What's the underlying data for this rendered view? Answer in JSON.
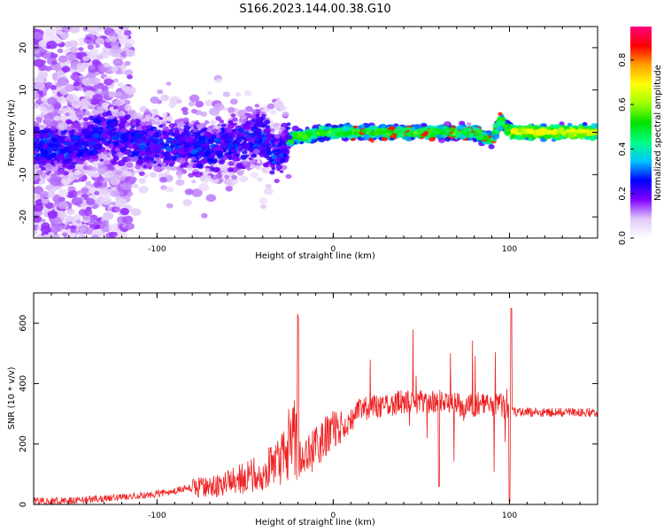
{
  "title": "S166.2023.144.00.38.G10",
  "chart_data": [
    {
      "type": "heatmap",
      "xlabel": "Height of straight line (km)",
      "ylabel": "Frequency (Hz)",
      "xlim": [
        -170,
        150
      ],
      "ylim": [
        -25,
        25
      ],
      "xticks": [
        -100,
        0,
        100
      ],
      "yticks": [
        -20,
        -10,
        0,
        10,
        20
      ],
      "colorbar": {
        "label": "Normalized spectral amplitude",
        "range": [
          0,
          0.95
        ],
        "ticks": [
          "0.0",
          "0.2",
          "0.4",
          "0.6",
          "0.8"
        ],
        "colors": [
          "#ffffff",
          "#e0c8f8",
          "#8000ff",
          "#0000ff",
          "#00c8ff",
          "#00ff80",
          "#00e000",
          "#a0ff00",
          "#ffff00",
          "#ffa000",
          "#ff0000",
          "#ff0080"
        ]
      },
      "ridge": {
        "x": [
          -170,
          -150,
          -130,
          -110,
          -90,
          -70,
          -50,
          -40,
          -33,
          -28,
          -22,
          -15,
          -8,
          0,
          10,
          20,
          40,
          60,
          80,
          90,
          95,
          100,
          150
        ],
        "y": [
          -3,
          -4,
          0,
          -3,
          -3,
          -4,
          -2,
          0,
          -6,
          -3,
          -1,
          -1,
          0,
          0,
          0,
          0,
          0,
          0,
          0,
          -2,
          3,
          0,
          0
        ]
      }
    },
    {
      "type": "line",
      "xlabel": "Height of straight line (km)",
      "ylabel": "SNR (10 * v/v)",
      "xlim": [
        -170,
        150
      ],
      "ylim": [
        0,
        700
      ],
      "xticks": [
        -100,
        0,
        100
      ],
      "yticks": [
        0,
        200,
        400,
        600
      ],
      "series": [
        {
          "color": "#ee2222",
          "x": [
            -170,
            -150,
            -130,
            -110,
            -100,
            -90,
            -80,
            -70,
            -60,
            -50,
            -45,
            -40,
            -35,
            -30,
            -25,
            -22,
            -20,
            -15,
            -10,
            -5,
            0,
            5,
            10,
            15,
            20,
            30,
            40,
            50,
            60,
            70,
            80,
            85,
            90,
            95,
            100,
            105,
            110,
            120,
            130,
            140,
            150
          ],
          "y": [
            10,
            12,
            20,
            30,
            35,
            45,
            55,
            60,
            70,
            90,
            100,
            110,
            130,
            150,
            200,
            250,
            160,
            150,
            190,
            220,
            240,
            250,
            280,
            310,
            320,
            330,
            340,
            340,
            340,
            330,
            330,
            335,
            330,
            330,
            310,
            305,
            305,
            305,
            305,
            305,
            305
          ]
        }
      ]
    }
  ]
}
